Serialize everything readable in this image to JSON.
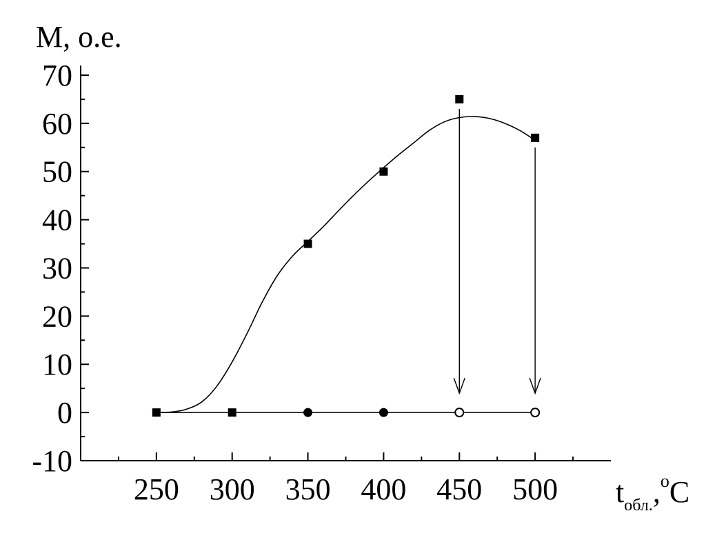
{
  "chart_data": {
    "type": "scatter",
    "ylabel": "M, о.е.",
    "xlabel": {
      "main": "t",
      "subscript": "обл.",
      "suffix": ",",
      "superscript": "o",
      "unit": "C"
    },
    "xlim": [
      200,
      550
    ],
    "ylim": [
      -10,
      72
    ],
    "xticks": [
      250,
      300,
      350,
      400,
      450,
      500
    ],
    "yticks": [
      -10,
      0,
      10,
      20,
      30,
      40,
      50,
      60,
      70
    ],
    "xtick_labels": [
      "250",
      "300",
      "350",
      "400",
      "450",
      "500"
    ],
    "ytick_labels": [
      "-10",
      "0",
      "10",
      "20",
      "30",
      "40",
      "50",
      "60",
      "70"
    ],
    "grid": false,
    "series": [
      {
        "marker": "filled-square",
        "x": [
          250,
          300,
          350,
          400,
          450,
          500
        ],
        "y": [
          0,
          0,
          35,
          50,
          65,
          57
        ]
      },
      {
        "marker": "filled-circle",
        "x": [
          350,
          400
        ],
        "y": [
          0,
          0
        ]
      },
      {
        "marker": "open-circle",
        "x": [
          450,
          500
        ],
        "y": [
          0,
          0
        ]
      }
    ],
    "fit_curve": {
      "x": [
        250,
        260,
        270,
        280,
        290,
        300,
        310,
        320,
        330,
        340,
        350,
        360,
        370,
        380,
        390,
        400,
        410,
        420,
        430,
        440,
        450,
        460,
        470,
        480,
        490,
        500
      ],
      "y": [
        0,
        0.1,
        0.7,
        2.2,
        5.5,
        10.5,
        16.5,
        23,
        28.5,
        32.5,
        35.5,
        38.5,
        41.8,
        45,
        48,
        50.8,
        53.5,
        56,
        58.5,
        60.3,
        61.2,
        61.4,
        61,
        60,
        58.5,
        56.5
      ]
    },
    "baseline_line": {
      "x": [
        250,
        500
      ],
      "y": [
        0,
        0
      ]
    },
    "arrows": [
      {
        "x": 450,
        "from_y": 63,
        "to_y": 4
      },
      {
        "x": 500,
        "from_y": 55,
        "to_y": 4
      }
    ]
  }
}
